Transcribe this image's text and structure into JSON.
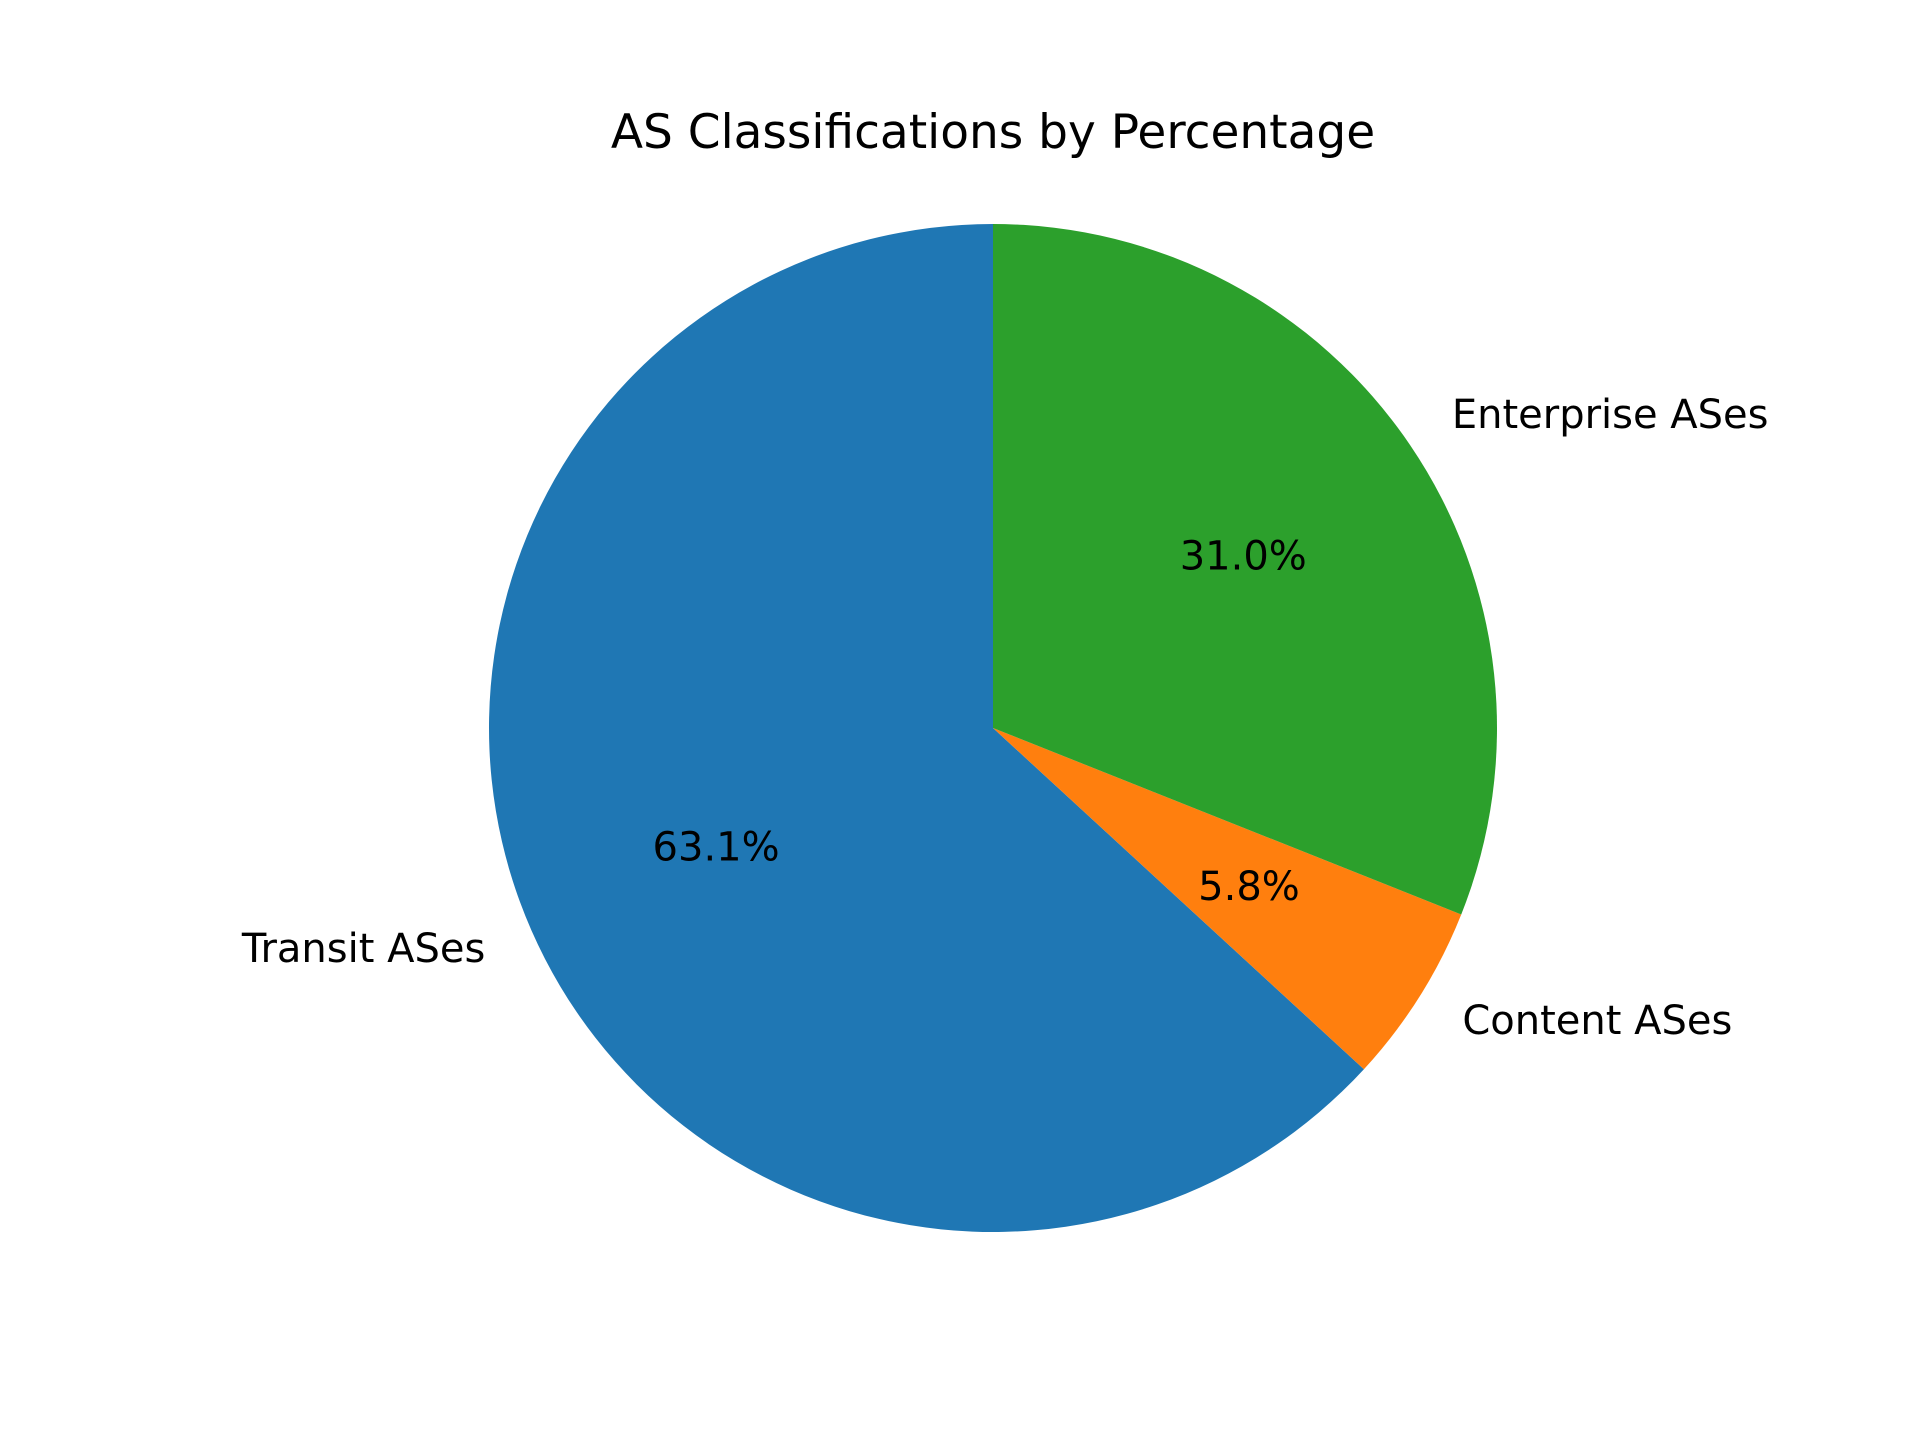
{
  "chart_data": {
    "type": "pie",
    "title": "AS Classifications by Percentage",
    "start_angle_deg": 90,
    "direction": "counterclockwise",
    "slices": [
      {
        "label": "Transit ASes",
        "value": 63.1,
        "pct_label": "63.1%",
        "color": "#1f77b4"
      },
      {
        "label": "Content ASes",
        "value": 5.8,
        "pct_label": "5.8%",
        "color": "#ff7f0e"
      },
      {
        "label": "Enterprise ASes",
        "value": 31.0,
        "pct_label": "31.0%",
        "color": "#2ca02c"
      }
    ]
  }
}
